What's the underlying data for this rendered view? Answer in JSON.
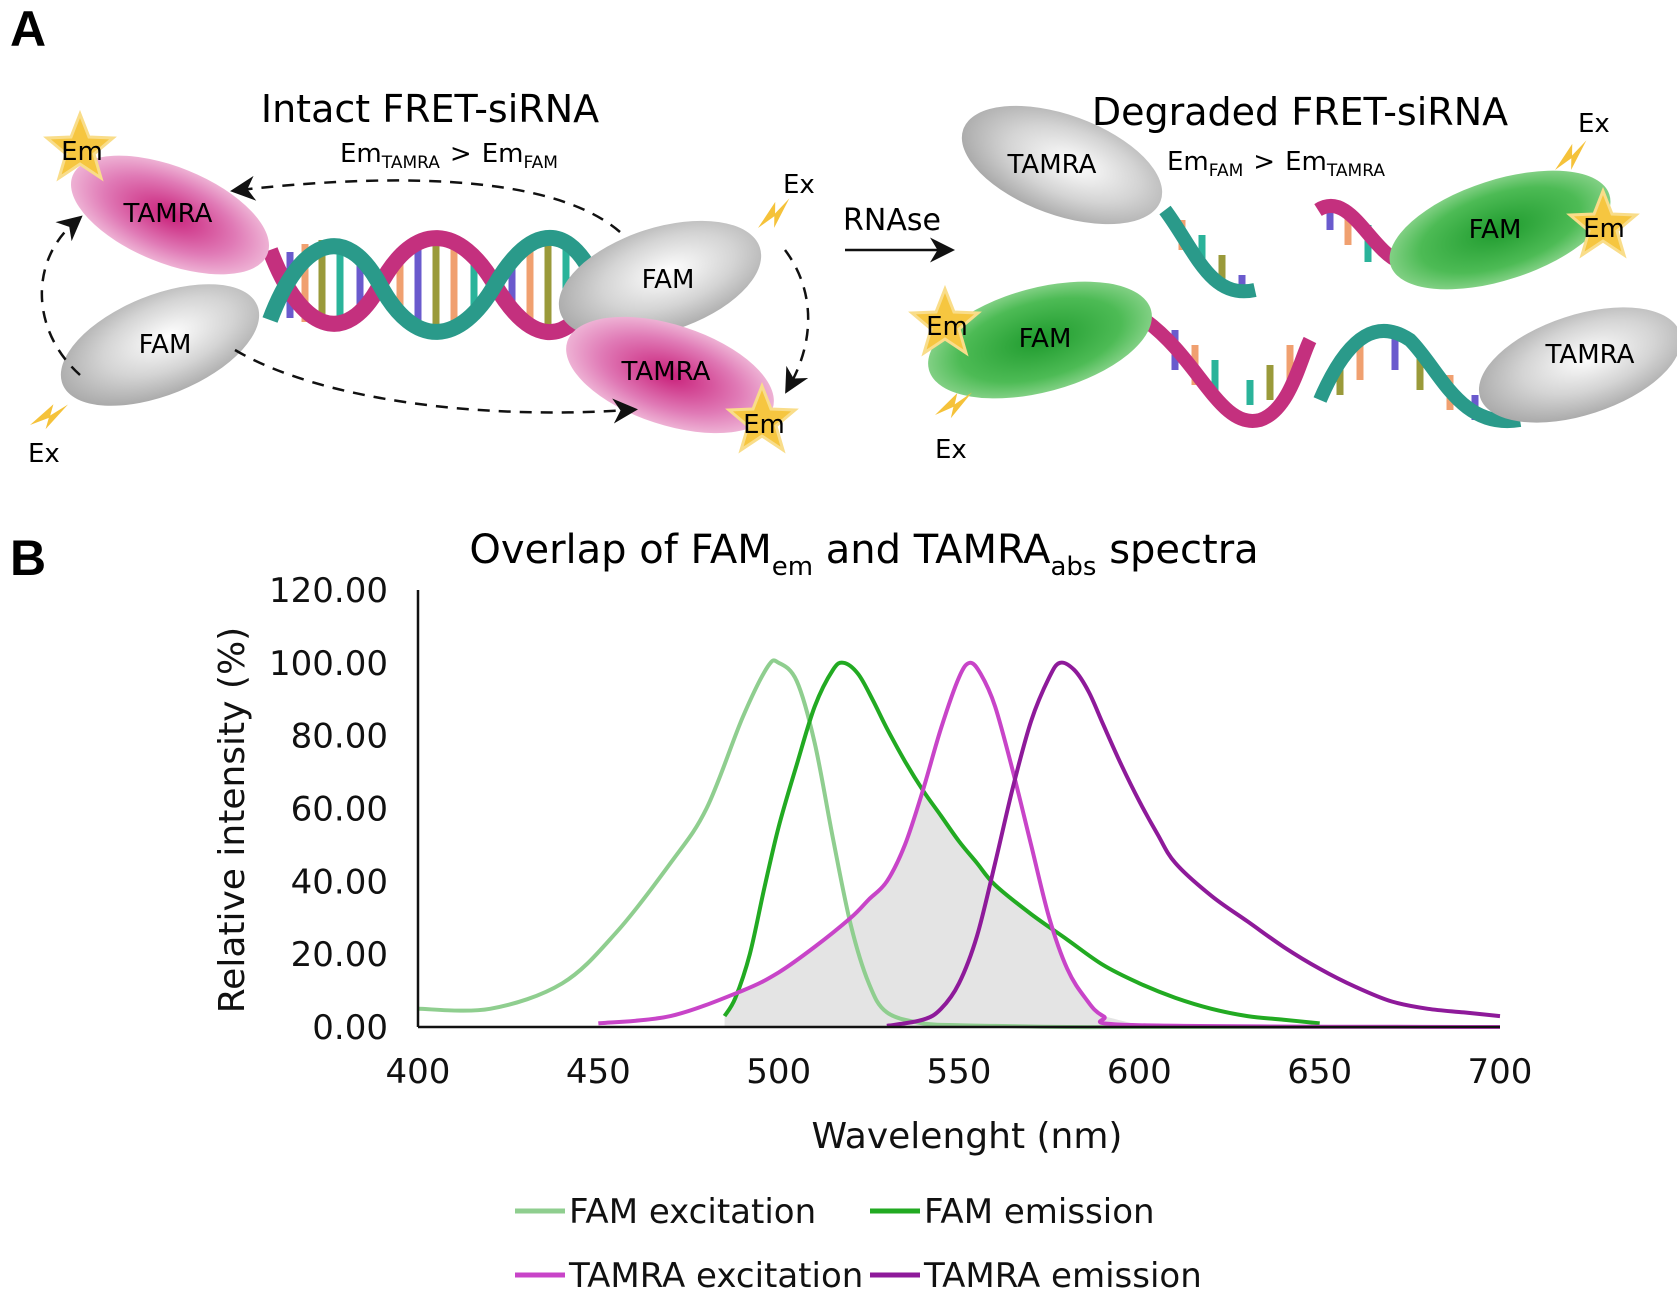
{
  "panel_a": {
    "letter": "A",
    "intact": {
      "title": "Intact FRET-siRNA",
      "rule_main": "Em",
      "rule_sub1": "TAMRA",
      "rule_op": ">",
      "rule_main2": "Em",
      "rule_sub2": "FAM"
    },
    "degraded": {
      "title": "Degraded FRET-siRNA",
      "rule_main": "Em",
      "rule_sub1": "FAM",
      "rule_op": ">",
      "rule_main2": "Em",
      "rule_sub2": "TAMRA"
    },
    "rnase": "RNAse",
    "fam": "FAM",
    "tamra": "TAMRA",
    "em": "Em",
    "ex": "Ex",
    "colors": {
      "tamra": "#c9207a",
      "fam": "#2aa83a",
      "grey": "#a8a8a8",
      "star": "#f2c232"
    }
  },
  "panel_b": {
    "letter": "B",
    "chart_data": {
      "type": "line",
      "title_main1": "Overlap of FAM",
      "title_sub1": "em",
      "title_mid": " and TAMRA",
      "title_sub2": "abs",
      "title_end": " spectra",
      "xlabel": "Wavelenght (nm)",
      "ylabel": "Relative intensity (%)",
      "xlim": [
        400,
        700
      ],
      "ylim": [
        0,
        120
      ],
      "xticks": [
        "400",
        "450",
        "500",
        "550",
        "600",
        "650",
        "700"
      ],
      "yticks": [
        "0.00",
        "20.00",
        "40.00",
        "60.00",
        "80.00",
        "100.00",
        "120.00"
      ],
      "overlap_fill_color": "#e4e4e4",
      "series": [
        {
          "name": "FAM excitation",
          "color": "#8fce8f",
          "x": [
            400,
            420,
            440,
            455,
            470,
            480,
            490,
            497,
            500,
            505,
            510,
            515,
            520,
            525,
            530,
            540,
            550,
            560,
            580,
            600,
            650,
            700
          ],
          "y": [
            5,
            5,
            12,
            26,
            45,
            60,
            85,
            99,
            100,
            95,
            78,
            52,
            28,
            12,
            4,
            1,
            0.5,
            0.3,
            0,
            0,
            0,
            0
          ]
        },
        {
          "name": "FAM emission",
          "color": "#22aa22",
          "x": [
            485,
            488,
            492,
            496,
            500,
            505,
            510,
            515,
            518,
            522,
            526,
            530,
            535,
            540,
            545,
            550,
            555,
            560,
            570,
            580,
            590,
            600,
            610,
            620,
            630,
            640,
            650
          ],
          "y": [
            3,
            8,
            20,
            38,
            55,
            72,
            88,
            98,
            100,
            97,
            90,
            82,
            73,
            65,
            58,
            51,
            45,
            39,
            31,
            24,
            17,
            12,
            8,
            5,
            3,
            2,
            1
          ]
        },
        {
          "name": "TAMRA excitation",
          "color": "#c844c8",
          "x": [
            450,
            470,
            490,
            500,
            510,
            520,
            525,
            530,
            535,
            540,
            545,
            550,
            553,
            556,
            560,
            565,
            570,
            575,
            580,
            585,
            590,
            600,
            700
          ],
          "y": [
            1,
            3,
            10,
            15,
            22,
            30,
            35,
            40,
            50,
            65,
            82,
            96,
            100,
            97,
            88,
            70,
            50,
            30,
            16,
            8,
            3,
            0.5,
            0
          ]
        },
        {
          "name": "TAMRA emission",
          "color": "#8e1a9a",
          "x": [
            530,
            540,
            545,
            550,
            555,
            560,
            565,
            570,
            575,
            578,
            582,
            586,
            590,
            595,
            600,
            605,
            610,
            620,
            630,
            640,
            650,
            660,
            670,
            680,
            690,
            700
          ],
          "y": [
            0.3,
            2,
            5,
            12,
            25,
            45,
            66,
            84,
            96,
            100,
            98,
            92,
            83,
            72,
            62,
            53,
            45,
            36,
            29,
            22,
            16,
            11,
            7,
            5,
            4,
            3
          ]
        }
      ]
    }
  }
}
